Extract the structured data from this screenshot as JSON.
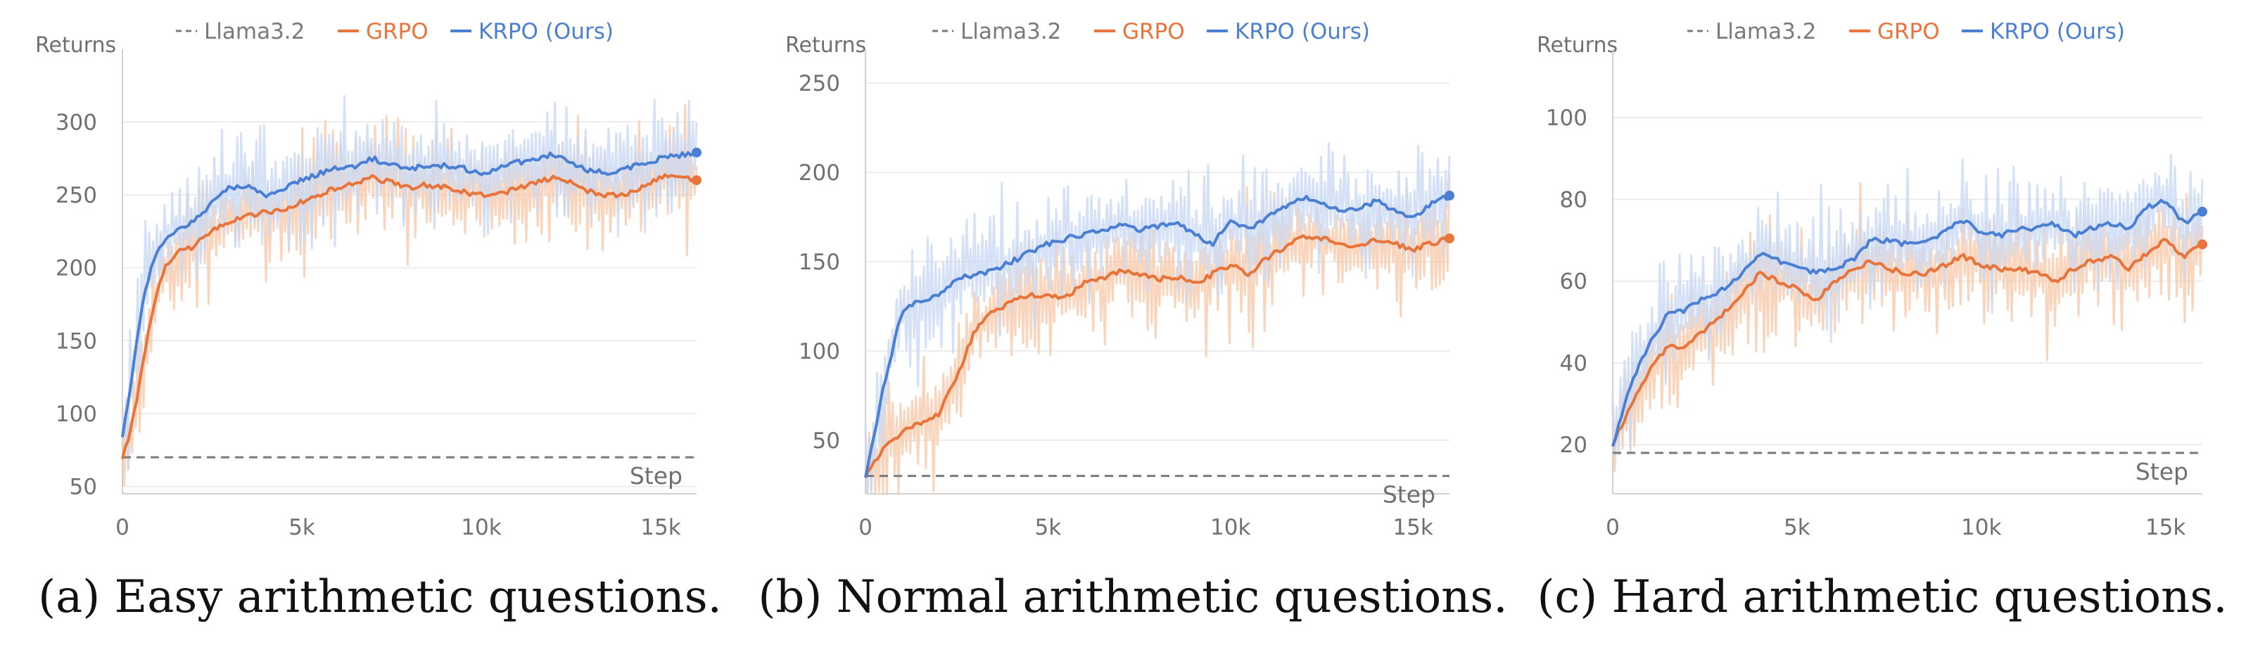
{
  "legend": {
    "baseline_label": "Llama3.2",
    "grpo_label": "GRPO",
    "krpo_label": "KRPO (Ours)"
  },
  "colors": {
    "baseline": "#7a7a7a",
    "grpo": "#e8743b",
    "krpo": "#4a7fd4",
    "grpo_band": "#f6c7a6",
    "krpo_band": "#c9d9f4",
    "grid": "#ececec",
    "axis": "#d0d0d0"
  },
  "chart_data": [
    {
      "type": "line",
      "caption": "(a) Easy arithmetic questions.",
      "ylabel": "Returns",
      "xlabel": "Step",
      "xlim": [
        0,
        16000
      ],
      "ylim": [
        45,
        345
      ],
      "x_ticks": [
        0,
        5000,
        10000,
        15000
      ],
      "x_tick_labels": [
        "0",
        "5k",
        "10k",
        "15k"
      ],
      "y_ticks": [
        50,
        100,
        150,
        200,
        250,
        300
      ],
      "y_tick_labels": [
        "50",
        "100",
        "150",
        "200",
        "250",
        "300"
      ],
      "grid": true,
      "legend_position": "top",
      "baseline": 70,
      "series": [
        {
          "name": "GRPO",
          "x": [
            0,
            200,
            400,
            600,
            800,
            1000,
            1200,
            1500,
            2000,
            2500,
            3000,
            3500,
            4000,
            4500,
            5000,
            5500,
            6000,
            6500,
            7000,
            7500,
            8000,
            8500,
            9000,
            9500,
            10000,
            10500,
            11000,
            11500,
            12000,
            12500,
            13000,
            13500,
            14000,
            14500,
            15000,
            15500,
            16000
          ],
          "values": [
            70,
            85,
            110,
            140,
            165,
            185,
            200,
            210,
            215,
            225,
            232,
            236,
            238,
            240,
            245,
            250,
            255,
            258,
            262,
            258,
            255,
            257,
            255,
            252,
            250,
            250,
            255,
            258,
            262,
            258,
            252,
            250,
            250,
            255,
            262,
            263,
            260
          ]
        },
        {
          "name": "KRPO (Ours)",
          "x": [
            0,
            200,
            400,
            600,
            800,
            1000,
            1200,
            1500,
            2000,
            2500,
            3000,
            3500,
            4000,
            4500,
            5000,
            5500,
            6000,
            6500,
            7000,
            7500,
            8000,
            8500,
            9000,
            9500,
            10000,
            10500,
            11000,
            11500,
            12000,
            12500,
            13000,
            13500,
            14000,
            14500,
            15000,
            15500,
            16000
          ],
          "values": [
            85,
            115,
            150,
            180,
            200,
            212,
            220,
            225,
            232,
            245,
            255,
            255,
            250,
            255,
            260,
            265,
            268,
            270,
            275,
            270,
            268,
            270,
            270,
            268,
            265,
            268,
            272,
            275,
            278,
            272,
            266,
            265,
            268,
            272,
            275,
            277,
            279
          ]
        }
      ]
    },
    {
      "type": "line",
      "caption": "(b) Normal arithmetic questions.",
      "ylabel": "Returns",
      "xlabel": "Step",
      "xlim": [
        0,
        16000
      ],
      "ylim": [
        20,
        265
      ],
      "x_ticks": [
        0,
        5000,
        10000,
        15000
      ],
      "x_tick_labels": [
        "0",
        "5k",
        "10k",
        "15k"
      ],
      "y_ticks": [
        50,
        100,
        150,
        200,
        250
      ],
      "y_tick_labels": [
        "50",
        "100",
        "150",
        "200",
        "250"
      ],
      "grid": true,
      "legend_position": "top",
      "baseline": 30,
      "series": [
        {
          "name": "GRPO",
          "x": [
            0,
            500,
            1000,
            1500,
            2000,
            2500,
            3000,
            3500,
            4000,
            4500,
            5000,
            5500,
            6000,
            6500,
            7000,
            7500,
            8000,
            8500,
            9000,
            9500,
            10000,
            10500,
            11000,
            11500,
            12000,
            12500,
            13000,
            13500,
            14000,
            14500,
            15000,
            15500,
            16000
          ],
          "values": [
            30,
            45,
            55,
            60,
            65,
            85,
            112,
            122,
            127,
            132,
            130,
            130,
            138,
            140,
            145,
            143,
            140,
            142,
            137,
            143,
            148,
            143,
            152,
            158,
            164,
            163,
            160,
            158,
            162,
            160,
            157,
            160,
            163
          ]
        },
        {
          "name": "KRPO (Ours)",
          "x": [
            0,
            500,
            1000,
            1500,
            2000,
            2500,
            3000,
            3500,
            4000,
            4500,
            5000,
            5500,
            6000,
            6500,
            7000,
            7500,
            8000,
            8500,
            9000,
            9500,
            10000,
            10500,
            11000,
            11500,
            12000,
            12500,
            13000,
            13500,
            14000,
            14500,
            15000,
            15500,
            16000
          ],
          "values": [
            30,
            80,
            123,
            128,
            132,
            140,
            143,
            145,
            150,
            155,
            160,
            163,
            165,
            168,
            170,
            168,
            170,
            172,
            165,
            160,
            172,
            168,
            175,
            180,
            186,
            182,
            178,
            180,
            184,
            178,
            175,
            182,
            187
          ]
        }
      ]
    },
    {
      "type": "line",
      "caption": "(c) Hard arithmetic questions.",
      "ylabel": "Returns",
      "xlabel": "Step",
      "xlim": [
        0,
        16000
      ],
      "ylim": [
        8,
        115
      ],
      "x_ticks": [
        0,
        5000,
        10000,
        15000
      ],
      "x_tick_labels": [
        "0",
        "5k",
        "10k",
        "15k"
      ],
      "y_ticks": [
        20,
        40,
        60,
        80,
        100
      ],
      "y_tick_labels": [
        "20",
        "40",
        "60",
        "80",
        "100"
      ],
      "grid": true,
      "legend_position": "top",
      "baseline": 18,
      "series": [
        {
          "name": "GRPO",
          "x": [
            0,
            500,
            1000,
            1500,
            2000,
            2500,
            3000,
            3500,
            4000,
            4500,
            5000,
            5500,
            6000,
            6500,
            7000,
            7500,
            8000,
            8500,
            9000,
            9500,
            10000,
            10500,
            11000,
            11500,
            12000,
            12500,
            13000,
            13500,
            14000,
            14500,
            15000,
            15500,
            16000
          ],
          "values": [
            20,
            30,
            38,
            44,
            44,
            48,
            52,
            57,
            62,
            60,
            58,
            55,
            60,
            63,
            65,
            63,
            62,
            62,
            64,
            66,
            64,
            63,
            63,
            62,
            60,
            63,
            65,
            66,
            63,
            67,
            70,
            66,
            69
          ]
        },
        {
          "name": "KRPO (Ours)",
          "x": [
            0,
            500,
            1000,
            1500,
            2000,
            2500,
            3000,
            3500,
            4000,
            4500,
            5000,
            5500,
            6000,
            6500,
            7000,
            7500,
            8000,
            8500,
            9000,
            9500,
            10000,
            10500,
            11000,
            11500,
            12000,
            12500,
            13000,
            13500,
            14000,
            14500,
            15000,
            15500,
            16000
          ],
          "values": [
            20,
            35,
            45,
            52,
            53,
            56,
            58,
            62,
            67,
            65,
            63,
            62,
            63,
            65,
            70,
            70,
            69,
            70,
            72,
            75,
            72,
            71,
            73,
            73,
            74,
            71,
            73,
            74,
            73,
            78,
            80,
            74,
            77
          ]
        }
      ]
    }
  ]
}
